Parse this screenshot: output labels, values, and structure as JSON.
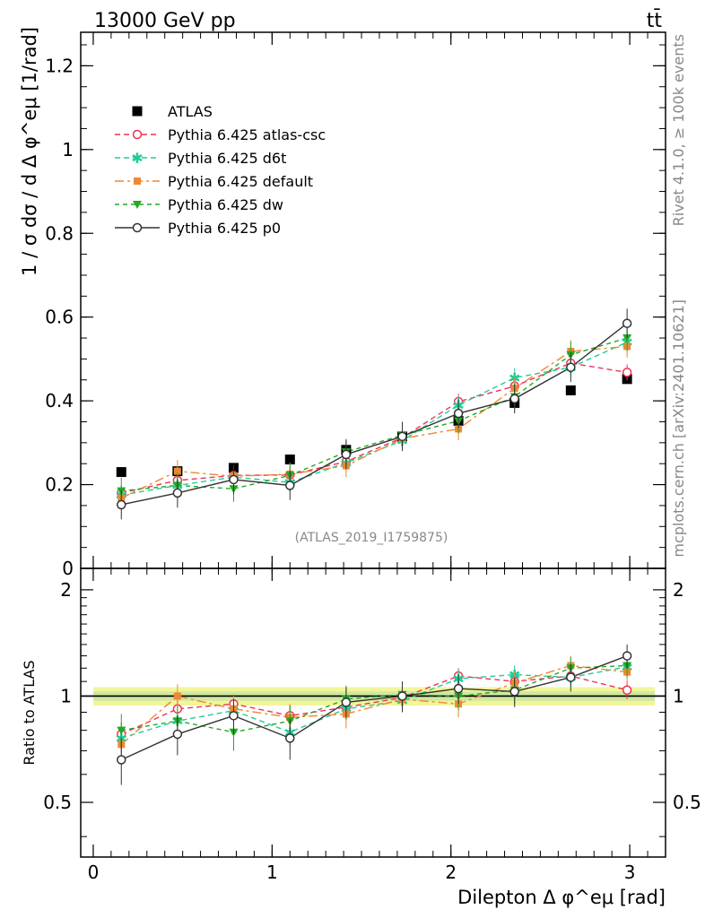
{
  "header": {
    "left": "13000 GeV pp",
    "right": "tt̄"
  },
  "side_labels": {
    "rivet": "Rivet 4.1.0, ≥ 100k events",
    "mcplots": "mcplots.cern.ch [arXiv:2401.10621]"
  },
  "watermark": "(ATLAS_2019_I1759875)",
  "colors": {
    "atlas": "#000000",
    "atlas_csc": "#ee3355",
    "d6t": "#22cc99",
    "default": "#ee8833",
    "dw": "#22aa22",
    "p0": "#333333",
    "band_inner": "#cfe8a0",
    "band_outer": "#f2f59a"
  },
  "chart_data": {
    "type": "line",
    "title": "",
    "xlabel": "Dilepton Δ φ^eμ [rad]",
    "ylabel": "1 / σ dσ / d Δ φ^eμ [1/rad]",
    "ratio_ylabel": "Ratio to ATLAS",
    "xlim": [
      -0.07,
      3.2
    ],
    "ylim": [
      0,
      1.28
    ],
    "ratio_ylim": [
      0.35,
      2.3
    ],
    "x_ticks": [
      "0",
      "1",
      "2",
      "3"
    ],
    "y_ticks": [
      "0",
      "0.2",
      "0.4",
      "0.6",
      "0.8",
      "1",
      "1.2"
    ],
    "ratio_ticks": [
      "0.5",
      "1",
      "2"
    ],
    "x": [
      0.157,
      0.471,
      0.785,
      1.1,
      1.414,
      1.728,
      2.042,
      2.356,
      2.67,
      2.985
    ],
    "series": [
      {
        "name": "ATLAS",
        "key": "atlas",
        "style": "data",
        "values": [
          0.23,
          0.232,
          0.24,
          0.26,
          0.283,
          0.315,
          0.352,
          0.395,
          0.425,
          0.452
        ],
        "ratio": [
          1,
          1,
          1,
          1,
          1,
          1,
          1,
          1,
          1,
          1
        ]
      },
      {
        "name": "Pythia 6.425 atlas-csc",
        "key": "atlas_csc",
        "style": "open-circle",
        "values": [
          0.18,
          0.21,
          0.222,
          0.223,
          0.255,
          0.312,
          0.398,
          0.435,
          0.49,
          0.468
        ],
        "ratio": [
          0.78,
          0.92,
          0.95,
          0.88,
          0.93,
          0.99,
          1.14,
          1.1,
          1.14,
          1.04
        ]
      },
      {
        "name": "Pythia 6.425 d6t",
        "key": "d6t",
        "style": "star",
        "values": [
          0.175,
          0.198,
          0.218,
          0.205,
          0.252,
          0.305,
          0.39,
          0.455,
          0.48,
          0.54
        ],
        "ratio": [
          0.76,
          0.85,
          0.91,
          0.79,
          0.92,
          0.97,
          1.12,
          1.15,
          1.13,
          1.21
        ]
      },
      {
        "name": "Pythia 6.425 default",
        "key": "default",
        "style": "square",
        "values": [
          0.168,
          0.232,
          0.22,
          0.225,
          0.245,
          0.31,
          0.333,
          0.43,
          0.518,
          0.53
        ],
        "ratio": [
          0.73,
          1.0,
          0.92,
          0.87,
          0.89,
          0.98,
          0.95,
          1.09,
          1.22,
          1.17
        ]
      },
      {
        "name": "Pythia 6.425 dw",
        "key": "dw",
        "style": "triangle-down",
        "values": [
          0.185,
          0.198,
          0.19,
          0.222,
          0.278,
          0.318,
          0.352,
          0.41,
          0.51,
          0.55
        ],
        "ratio": [
          0.8,
          0.85,
          0.79,
          0.85,
          0.98,
          1.01,
          1.0,
          1.04,
          1.2,
          1.22
        ]
      },
      {
        "name": "Pythia 6.425 p0",
        "key": "p0",
        "style": "open-circle-line",
        "values": [
          0.152,
          0.18,
          0.212,
          0.198,
          0.272,
          0.315,
          0.37,
          0.405,
          0.48,
          0.585
        ],
        "ratio": [
          0.66,
          0.78,
          0.88,
          0.76,
          0.96,
          1.0,
          1.05,
          1.03,
          1.13,
          1.3
        ]
      }
    ]
  }
}
